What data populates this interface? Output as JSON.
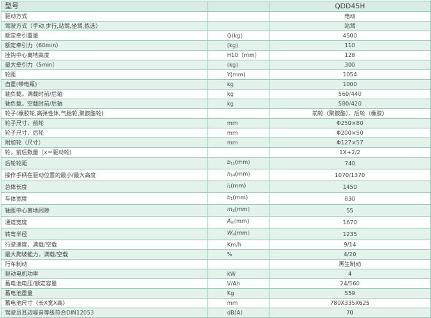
{
  "header": {
    "label": "型号",
    "unit": "",
    "value": "QDD45H"
  },
  "rows": [
    {
      "label": "驱动方式",
      "unit": "",
      "value": "电动"
    },
    {
      "label": "驾驶方式（手动,步行,站驾,坐驾,拣选）",
      "unit": "",
      "value": "站驾"
    },
    {
      "label": "额定牵引重量",
      "unit": "Q(kg)",
      "value": "4500"
    },
    {
      "label": "额定牵引力（60min）",
      "unit": "(kg)",
      "value": "110"
    },
    {
      "label": "挂钩中心离地高度",
      "unit": "H10（mm）",
      "value": "128"
    },
    {
      "label": "最大牵引力（5min）",
      "unit": "(kg)",
      "value": "300"
    },
    {
      "label": "轮距",
      "unit": "Y(mm)",
      "value": "1054"
    },
    {
      "label": "自重(带电瓶)",
      "unit": "kg",
      "value": "1000"
    },
    {
      "label": "轴负载，满载时前/后轴",
      "unit": "kg",
      "value": "560/440"
    },
    {
      "label": "轴负载，空载时前/后轴",
      "unit": "kg",
      "value": "580/420"
    },
    {
      "label": "轮子(橡胶轮,高弹性体,气胎轮,聚胺酯轮)",
      "unit": "",
      "value": "前轮（聚胺酯），后轮（橡胶）"
    },
    {
      "label": "轮子尺寸，前轮",
      "unit": "mm",
      "value": "Φ250×80"
    },
    {
      "label": "轮子尺寸，后轮",
      "unit": "mm",
      "value": "Φ200×50"
    },
    {
      "label": "附加轮（尺寸）",
      "unit": "mm",
      "value": "Φ127×57"
    },
    {
      "label": "轮，前后数量（x＝驱动轮）",
      "unit": "",
      "value": "1X+2/2"
    },
    {
      "label": "后轮轮距",
      "unit_sym": "b",
      "unit_sub": "11",
      "unit": "(mm)",
      "value": "740"
    },
    {
      "label": "操作手柄在驱动位置的最小/最大高度",
      "unit_sym": "h",
      "unit_sub": "14",
      "unit": "(mm)",
      "value": "1070/1370"
    },
    {
      "label": "总体长度",
      "unit_sym": "l",
      "unit_sub": "1",
      "unit": "(mm)",
      "value": "1450"
    },
    {
      "label": "车体宽度",
      "unit_sym": "b",
      "unit_sub": "1",
      "unit": "(mm)",
      "value": "830"
    },
    {
      "label": "轴距中心离地间隙",
      "unit_sym": "m",
      "unit_sub": "2",
      "unit": "(mm)",
      "value": "55"
    },
    {
      "label": "通道宽度",
      "unit_sym": "A",
      "unit_sub": "st",
      "unit": "(mm)",
      "value": "1670"
    },
    {
      "label": "转弯半径",
      "unit_sym": "W",
      "unit_sub": "a",
      "unit": "(mm)",
      "value": "1235"
    },
    {
      "label": "行驶速度，满载/空载",
      "unit": "Km/h",
      "value": "9/14"
    },
    {
      "label": "最大爬坡能力，满载/空载",
      "unit": "%",
      "value": "4/20"
    },
    {
      "label": "行车制动",
      "unit": "",
      "value": "再生制动"
    },
    {
      "label": "驱动电机功率",
      "unit": "kW",
      "value": "4"
    },
    {
      "label": "蓄电池电压/额定容量",
      "unit": "V/Ah",
      "value": "24/560"
    },
    {
      "label": "蓄电池重量",
      "unit": "Kg",
      "value": "559"
    },
    {
      "label": "蓄电池尺寸（长X宽X高）",
      "unit": "mm",
      "value": "780X335X625"
    },
    {
      "label": "驾驶员耳边噪音等级符合DIN12053",
      "unit": "dB(A)",
      "value": "70"
    }
  ]
}
